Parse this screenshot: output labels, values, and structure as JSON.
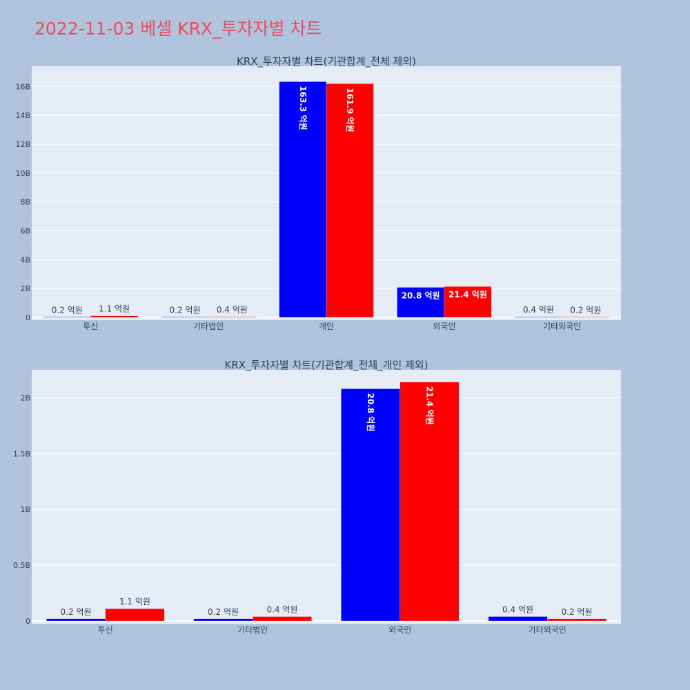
{
  "page": {
    "title": "2022-11-03 베셀 KRX_투자자별 차트"
  },
  "colors": {
    "series_a": "#0000ff",
    "series_b": "#ff0000",
    "plot_bg": "#e5ecf6",
    "page_bg": "#b0c4de",
    "title": "#ef4a5e"
  },
  "chart_data": [
    {
      "type": "bar",
      "title": "KRX_투자자별 차트(기관합계_전체 제외)",
      "categories": [
        "투신",
        "기타법인",
        "개인",
        "외국인",
        "기타외국인"
      ],
      "series": [
        {
          "values": [
            20000000,
            20000000,
            16330000000,
            2080000000,
            40000000
          ],
          "labels": [
            "0.2 억원",
            "0.2 억원",
            "163.3 억원",
            "20.8 억원",
            "0.4 억원"
          ]
        },
        {
          "values": [
            110000000,
            40000000,
            16190000000,
            2140000000,
            20000000
          ],
          "labels": [
            "1.1 억원",
            "0.4 억원",
            "161.9 억원",
            "21.4 억원",
            "0.2 억원"
          ]
        }
      ],
      "ylim": [
        0,
        17400000000
      ],
      "yticks": [
        0,
        2000000000,
        4000000000,
        6000000000,
        8000000000,
        10000000000,
        12000000000,
        14000000000,
        16000000000
      ],
      "ytick_labels": [
        "0",
        "2B",
        "4B",
        "6B",
        "8B",
        "10B",
        "12B",
        "14B",
        "16B"
      ],
      "grid": true
    },
    {
      "type": "bar",
      "title": "KRX_투자자별 차트(기관합계_전체_개인 제외)",
      "categories": [
        "투신",
        "기타법인",
        "외국인",
        "기타외국인"
      ],
      "series": [
        {
          "values": [
            20000000,
            20000000,
            2080000000,
            40000000
          ],
          "labels": [
            "0.2 억원",
            "0.2 억원",
            "20.8 억원",
            "0.4 억원"
          ]
        },
        {
          "values": [
            110000000,
            40000000,
            2140000000,
            20000000
          ],
          "labels": [
            "1.1 억원",
            "0.4 억원",
            "21.4 억원",
            "0.2 억원"
          ]
        }
      ],
      "ylim": [
        0,
        2250000000
      ],
      "yticks": [
        0,
        500000000,
        1000000000,
        1500000000,
        2000000000
      ],
      "ytick_labels": [
        "0",
        "0.5B",
        "1B",
        "1.5B",
        "2B"
      ],
      "grid": true
    }
  ]
}
